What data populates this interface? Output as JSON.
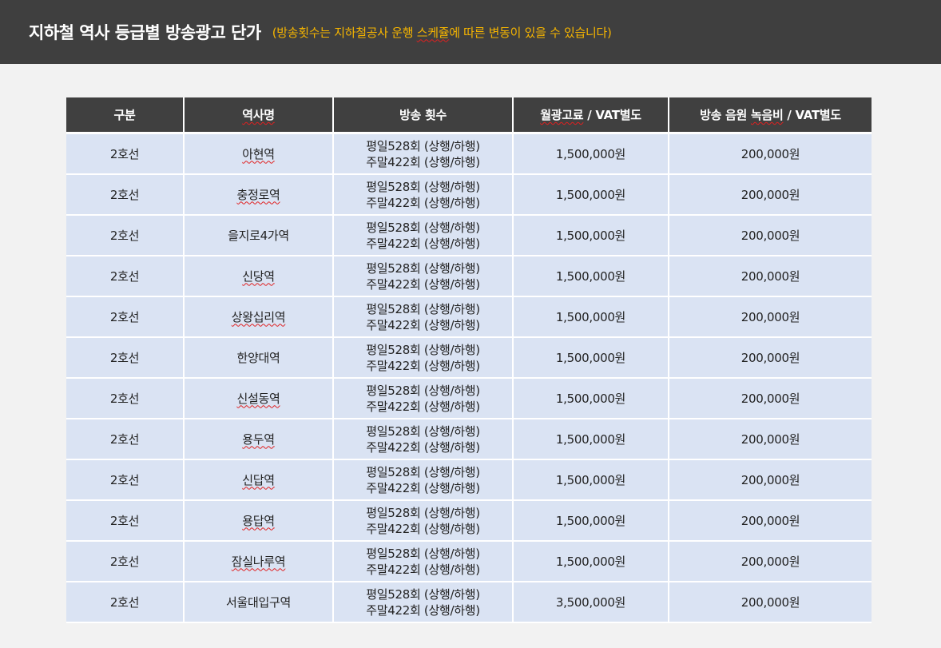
{
  "header": {
    "title": "지하철 역사 등급별 방송광고 단가",
    "subtitle_pre": "(방송횟수는 지하철공사 운행 ",
    "subtitle_mark": "스케쥴",
    "subtitle_post": "에 따른 변동이 있을 수 있습니다)"
  },
  "table": {
    "headers": {
      "col1": "구분",
      "col2": "역사명",
      "col3": "방송 횟수",
      "col4_mark": "월광고료",
      "col4_rest": " /  VAT별도",
      "col5_pre": "방송 음원 ",
      "col5_mark": "녹음비",
      "col5_rest": " / VAT별도"
    },
    "rows": [
      {
        "line": "2호선",
        "station": "아현역",
        "freq1": "평일528회 (상행/하행)",
        "freq2": "주말422회 (상행/하행)",
        "fee": "1,500,000원",
        "rec": "200,000원"
      },
      {
        "line": "2호선",
        "station": "충정로역",
        "freq1": "평일528회 (상행/하행)",
        "freq2": "주말422회 (상행/하행)",
        "fee": "1,500,000원",
        "rec": "200,000원"
      },
      {
        "line": "2호선",
        "station": "을지로4가역",
        "freq1": "평일528회 (상행/하행)",
        "freq2": "주말422회 (상행/하행)",
        "fee": "1,500,000원",
        "rec": "200,000원"
      },
      {
        "line": "2호선",
        "station": "신당역",
        "freq1": "평일528회 (상행/하행)",
        "freq2": "주말422회 (상행/하행)",
        "fee": "1,500,000원",
        "rec": "200,000원"
      },
      {
        "line": "2호선",
        "station": "상왕십리역",
        "freq1": "평일528회 (상행/하행)",
        "freq2": "주말422회 (상행/하행)",
        "fee": "1,500,000원",
        "rec": "200,000원"
      },
      {
        "line": "2호선",
        "station": "한양대역",
        "freq1": "평일528회 (상행/하행)",
        "freq2": "주말422회 (상행/하행)",
        "fee": "1,500,000원",
        "rec": "200,000원"
      },
      {
        "line": "2호선",
        "station": "신설동역",
        "freq1": "평일528회 (상행/하행)",
        "freq2": "주말422회 (상행/하행)",
        "fee": "1,500,000원",
        "rec": "200,000원"
      },
      {
        "line": "2호선",
        "station": "용두역",
        "freq1": "평일528회 (상행/하행)",
        "freq2": "주말422회 (상행/하행)",
        "fee": "1,500,000원",
        "rec": "200,000원"
      },
      {
        "line": "2호선",
        "station": "신답역",
        "freq1": "평일528회 (상행/하행)",
        "freq2": "주말422회 (상행/하행)",
        "fee": "1,500,000원",
        "rec": "200,000원"
      },
      {
        "line": "2호선",
        "station": "용답역",
        "freq1": "평일528회 (상행/하행)",
        "freq2": "주말422회 (상행/하행)",
        "fee": "1,500,000원",
        "rec": "200,000원"
      },
      {
        "line": "2호선",
        "station": "잠실나루역",
        "freq1": "평일528회 (상행/하행)",
        "freq2": "주말422회 (상행/하행)",
        "fee": "1,500,000원",
        "rec": "200,000원"
      },
      {
        "line": "2호선",
        "station": "서울대입구역",
        "freq1": "평일528회 (상행/하행)",
        "freq2": "주말422회 (상행/하행)",
        "fee": "3,500,000원",
        "rec": "200,000원"
      }
    ]
  }
}
